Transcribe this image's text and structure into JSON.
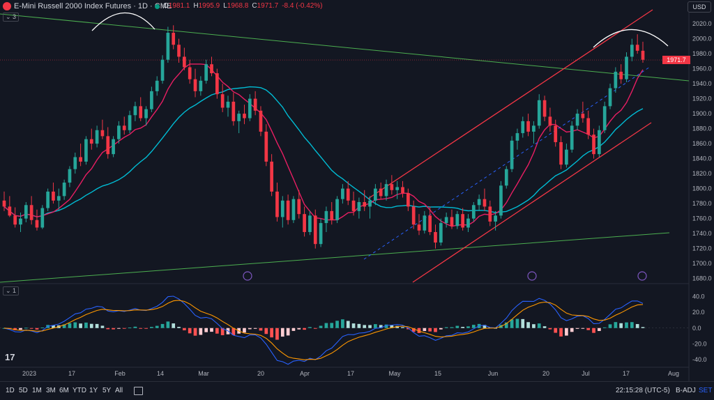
{
  "header": {
    "title": "E-Mini Russell 2000 Index Futures · 1D · CME",
    "ohlc": [
      {
        "k": "O",
        "v": "1981.1"
      },
      {
        "k": "H",
        "v": "1995.9"
      },
      {
        "k": "L",
        "v": "1968.8"
      },
      {
        "k": "C",
        "v": "1971.7"
      },
      {
        "k": "",
        "v": "-8.4 (-0.42%)"
      }
    ],
    "currency": "USD"
  },
  "panes": {
    "main_label": "3",
    "macd_label": "1"
  },
  "last_price": "1971.7",
  "bottom": {
    "timeframes": [
      "1D",
      "5D",
      "1M",
      "3M",
      "6M",
      "YTD",
      "1Y",
      "5Y",
      "All"
    ],
    "clock": "22:15:28 (UTC-5)",
    "adj": "B-ADJ",
    "set": "SET"
  },
  "colors": {
    "bg": "#131722",
    "up": "#26a69a",
    "down": "#f23645",
    "ma_fast": "#e91e63",
    "ma_slow": "#00bcd4",
    "trend_green": "#4caf50",
    "channel_red": "#f23645",
    "macd_line": "#2962ff",
    "signal_line": "#ff9800"
  },
  "chart_data": [
    {
      "type": "candlestick",
      "yaxis_ticks": [
        2020,
        2000,
        1980,
        1960,
        1940,
        1920,
        1900,
        1880,
        1860,
        1840,
        1820,
        1800,
        1780,
        1760,
        1740,
        1720,
        1700,
        1680
      ],
      "ylim": [
        1675,
        2035
      ],
      "xaxis_ticks": [
        "2023",
        "17",
        "Feb",
        "14",
        "Mar",
        "20",
        "Apr",
        "17",
        "May",
        "15",
        "Jun",
        "20",
        "Jul",
        "17",
        "Aug"
      ],
      "annotations": [
        "arc-top-feb",
        "arc-top-jul",
        "green-resistance-line",
        "green-support-line",
        "red-rising-channel",
        "dashed-trendline"
      ],
      "candles": [
        [
          1784,
          1796,
          1770,
          1776
        ],
        [
          1776,
          1790,
          1762,
          1764
        ],
        [
          1764,
          1775,
          1748,
          1752
        ],
        [
          1752,
          1768,
          1742,
          1760
        ],
        [
          1760,
          1782,
          1755,
          1778
        ],
        [
          1778,
          1790,
          1752,
          1758
        ],
        [
          1758,
          1772,
          1744,
          1748
        ],
        [
          1748,
          1778,
          1746,
          1774
        ],
        [
          1774,
          1800,
          1770,
          1796
        ],
        [
          1796,
          1808,
          1780,
          1784
        ],
        [
          1784,
          1800,
          1770,
          1790
        ],
        [
          1790,
          1812,
          1785,
          1808
        ],
        [
          1808,
          1830,
          1802,
          1826
        ],
        [
          1826,
          1848,
          1820,
          1842
        ],
        [
          1842,
          1860,
          1830,
          1836
        ],
        [
          1836,
          1870,
          1832,
          1866
        ],
        [
          1866,
          1880,
          1852,
          1860
        ],
        [
          1860,
          1884,
          1855,
          1878
        ],
        [
          1878,
          1892,
          1866,
          1870
        ],
        [
          1870,
          1882,
          1840,
          1846
        ],
        [
          1846,
          1870,
          1842,
          1866
        ],
        [
          1866,
          1890,
          1860,
          1884
        ],
        [
          1884,
          1896,
          1872,
          1878
        ],
        [
          1878,
          1904,
          1874,
          1898
        ],
        [
          1898,
          1916,
          1890,
          1910
        ],
        [
          1910,
          1922,
          1890,
          1894
        ],
        [
          1894,
          1910,
          1884,
          1906
        ],
        [
          1906,
          1936,
          1902,
          1930
        ],
        [
          1930,
          1950,
          1924,
          1944
        ],
        [
          1944,
          1978,
          1940,
          1972
        ],
        [
          1972,
          2016,
          1968,
          2008
        ],
        [
          2008,
          2018,
          1986,
          1992
        ],
        [
          1992,
          2000,
          1968,
          1976
        ],
        [
          1976,
          1988,
          1958,
          1962
        ],
        [
          1962,
          1972,
          1940,
          1946
        ],
        [
          1946,
          1960,
          1922,
          1930
        ],
        [
          1930,
          1950,
          1924,
          1944
        ],
        [
          1944,
          1972,
          1940,
          1966
        ],
        [
          1966,
          1976,
          1950,
          1954
        ],
        [
          1954,
          1960,
          1920,
          1926
        ],
        [
          1926,
          1940,
          1902,
          1908
        ],
        [
          1908,
          1924,
          1896,
          1916
        ],
        [
          1916,
          1928,
          1884,
          1890
        ],
        [
          1890,
          1904,
          1874,
          1900
        ],
        [
          1900,
          1912,
          1886,
          1894
        ],
        [
          1894,
          1926,
          1890,
          1920
        ],
        [
          1920,
          1930,
          1898,
          1904
        ],
        [
          1904,
          1910,
          1870,
          1876
        ],
        [
          1876,
          1886,
          1830,
          1836
        ],
        [
          1836,
          1846,
          1790,
          1796
        ],
        [
          1796,
          1808,
          1756,
          1762
        ],
        [
          1762,
          1790,
          1748,
          1784
        ],
        [
          1784,
          1792,
          1752,
          1758
        ],
        [
          1758,
          1790,
          1754,
          1786
        ],
        [
          1786,
          1798,
          1760,
          1766
        ],
        [
          1766,
          1776,
          1736,
          1742
        ],
        [
          1742,
          1770,
          1738,
          1764
        ],
        [
          1764,
          1772,
          1720,
          1726
        ],
        [
          1726,
          1760,
          1722,
          1754
        ],
        [
          1754,
          1776,
          1742,
          1770
        ],
        [
          1770,
          1782,
          1752,
          1758
        ],
        [
          1758,
          1790,
          1754,
          1786
        ],
        [
          1786,
          1806,
          1780,
          1800
        ],
        [
          1800,
          1810,
          1778,
          1784
        ],
        [
          1784,
          1796,
          1764,
          1770
        ],
        [
          1770,
          1788,
          1760,
          1782
        ],
        [
          1782,
          1798,
          1770,
          1776
        ],
        [
          1776,
          1790,
          1760,
          1784
        ],
        [
          1784,
          1806,
          1778,
          1800
        ],
        [
          1800,
          1808,
          1786,
          1790
        ],
        [
          1790,
          1812,
          1784,
          1806
        ],
        [
          1806,
          1818,
          1792,
          1798
        ],
        [
          1798,
          1810,
          1786,
          1802
        ],
        [
          1802,
          1810,
          1788,
          1794
        ],
        [
          1794,
          1800,
          1770,
          1776
        ],
        [
          1776,
          1784,
          1746,
          1752
        ],
        [
          1752,
          1766,
          1738,
          1744
        ],
        [
          1744,
          1770,
          1740,
          1764
        ],
        [
          1764,
          1776,
          1738,
          1742
        ],
        [
          1742,
          1752,
          1720,
          1728
        ],
        [
          1728,
          1760,
          1724,
          1754
        ],
        [
          1754,
          1768,
          1748,
          1762
        ],
        [
          1762,
          1772,
          1746,
          1750
        ],
        [
          1750,
          1770,
          1746,
          1766
        ],
        [
          1766,
          1774,
          1744,
          1748
        ],
        [
          1748,
          1766,
          1742,
          1760
        ],
        [
          1760,
          1782,
          1756,
          1778
        ],
        [
          1778,
          1792,
          1770,
          1786
        ],
        [
          1786,
          1800,
          1770,
          1776
        ],
        [
          1776,
          1784,
          1750,
          1756
        ],
        [
          1756,
          1770,
          1744,
          1764
        ],
        [
          1764,
          1810,
          1760,
          1804
        ],
        [
          1804,
          1830,
          1800,
          1826
        ],
        [
          1826,
          1870,
          1822,
          1864
        ],
        [
          1864,
          1880,
          1852,
          1874
        ],
        [
          1874,
          1896,
          1868,
          1890
        ],
        [
          1890,
          1900,
          1870,
          1876
        ],
        [
          1876,
          1890,
          1860,
          1884
        ],
        [
          1884,
          1926,
          1880,
          1918
        ],
        [
          1918,
          1924,
          1890,
          1896
        ],
        [
          1896,
          1908,
          1876,
          1884
        ],
        [
          1884,
          1892,
          1856,
          1862
        ],
        [
          1862,
          1870,
          1826,
          1832
        ],
        [
          1832,
          1860,
          1828,
          1852
        ],
        [
          1852,
          1890,
          1848,
          1884
        ],
        [
          1884,
          1906,
          1878,
          1900
        ],
        [
          1900,
          1916,
          1888,
          1894
        ],
        [
          1894,
          1904,
          1866,
          1872
        ],
        [
          1872,
          1880,
          1840,
          1846
        ],
        [
          1846,
          1884,
          1842,
          1878
        ],
        [
          1878,
          1916,
          1874,
          1910
        ],
        [
          1910,
          1940,
          1906,
          1934
        ],
        [
          1934,
          1962,
          1928,
          1956
        ],
        [
          1956,
          1966,
          1940,
          1946
        ],
        [
          1946,
          1982,
          1942,
          1976
        ],
        [
          1976,
          2000,
          1970,
          1992
        ],
        [
          1992,
          2006,
          1980,
          1984
        ],
        [
          1984,
          1996,
          1968,
          1972
        ]
      ]
    },
    {
      "type": "histogram",
      "name": "MACD",
      "yaxis_ticks": [
        40.0,
        20.0,
        0.0,
        -20.0,
        -40.0
      ],
      "ylim": [
        -48,
        52
      ]
    }
  ]
}
